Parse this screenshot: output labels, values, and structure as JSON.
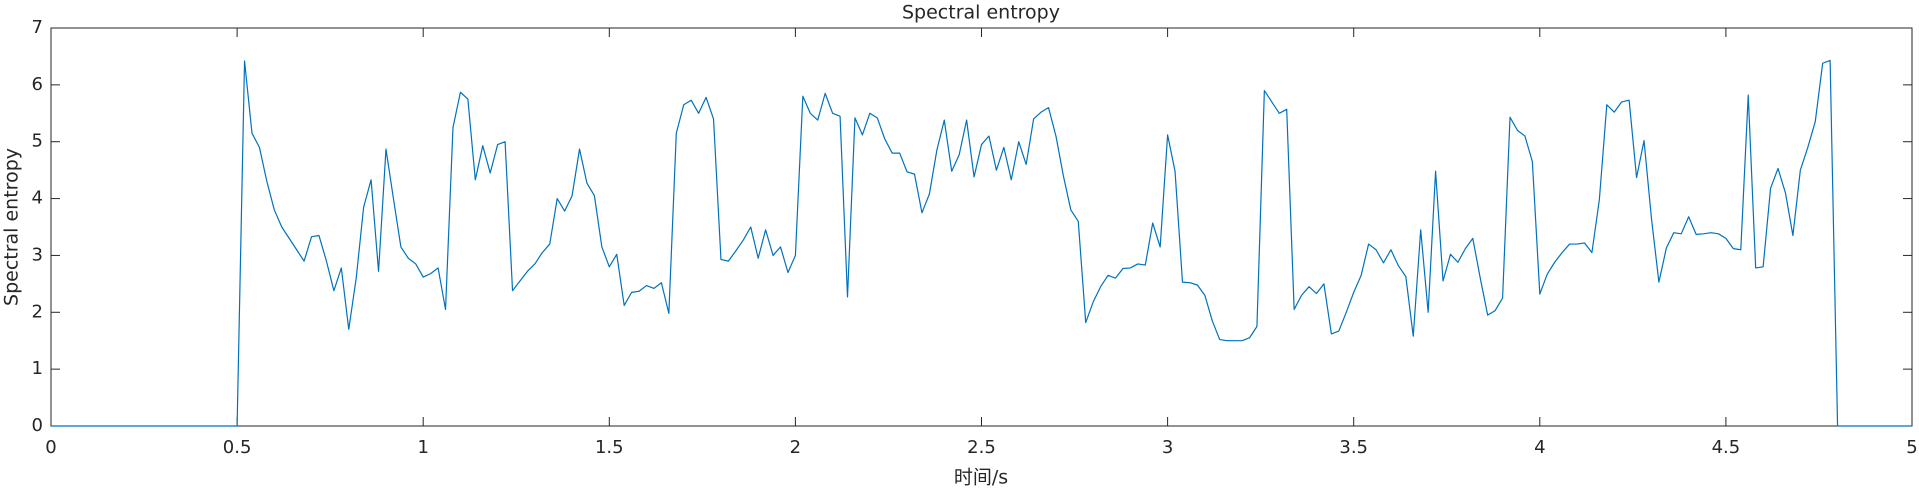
{
  "chart_data": {
    "type": "line",
    "title": "Spectral entropy",
    "xlabel": "时间/s",
    "ylabel": "Spectral entropy",
    "color": "#0072bd",
    "x": [
      0,
      0.5,
      0.52,
      0.54,
      0.56,
      0.58,
      0.6,
      0.62,
      0.64,
      0.66,
      0.68,
      0.7,
      0.72,
      0.74,
      0.76,
      0.78,
      0.8,
      0.82,
      0.84,
      0.86,
      0.88,
      0.9,
      0.92,
      0.94,
      0.96,
      0.98,
      1.0,
      1.02,
      1.04,
      1.06,
      1.08,
      1.1,
      1.12,
      1.14,
      1.16,
      1.18,
      1.2,
      1.22,
      1.24,
      1.26,
      1.28,
      1.3,
      1.32,
      1.34,
      1.36,
      1.38,
      1.4,
      1.42,
      1.44,
      1.46,
      1.48,
      1.5,
      1.52,
      1.54,
      1.56,
      1.58,
      1.6,
      1.62,
      1.64,
      1.66,
      1.68,
      1.7,
      1.72,
      1.74,
      1.76,
      1.78,
      1.8,
      1.82,
      1.84,
      1.86,
      1.88,
      1.9,
      1.92,
      1.94,
      1.96,
      1.98,
      2.0,
      2.02,
      2.04,
      2.06,
      2.08,
      2.1,
      2.12,
      2.14,
      2.16,
      2.18,
      2.2,
      2.22,
      2.24,
      2.26,
      2.28,
      2.3,
      2.32,
      2.34,
      2.36,
      2.38,
      2.4,
      2.42,
      2.44,
      2.46,
      2.48,
      2.5,
      2.52,
      2.54,
      2.56,
      2.58,
      2.6,
      2.62,
      2.64,
      2.66,
      2.68,
      2.7,
      2.72,
      2.74,
      2.76,
      2.78,
      2.8,
      2.82,
      2.84,
      2.86,
      2.88,
      2.9,
      2.92,
      2.94,
      2.96,
      2.98,
      3.0,
      3.02,
      3.04,
      3.06,
      3.08,
      3.1,
      3.12,
      3.14,
      3.16,
      3.18,
      3.2,
      3.22,
      3.24,
      3.26,
      3.28,
      3.3,
      3.32,
      3.34,
      3.36,
      3.38,
      3.4,
      3.42,
      3.44,
      3.46,
      3.48,
      3.5,
      3.52,
      3.54,
      3.56,
      3.58,
      3.6,
      3.62,
      3.64,
      3.66,
      3.68,
      3.7,
      3.72,
      3.74,
      3.76,
      3.78,
      3.8,
      3.82,
      3.84,
      3.86,
      3.88,
      3.9,
      3.92,
      3.94,
      3.96,
      3.98,
      4.0,
      4.02,
      4.04,
      4.06,
      4.08,
      4.1,
      4.12,
      4.14,
      4.16,
      4.18,
      4.2,
      4.22,
      4.24,
      4.26,
      4.28,
      4.3,
      4.32,
      4.34,
      4.36,
      4.38,
      4.4,
      4.42,
      4.44,
      4.46,
      4.48,
      4.5,
      4.52,
      4.54,
      4.56,
      4.58,
      4.6,
      4.62,
      4.64,
      4.66,
      4.68,
      4.7,
      4.72,
      4.74,
      4.76,
      4.78,
      4.8,
      5
    ],
    "values": [
      0,
      0,
      6.42,
      5.15,
      4.9,
      4.3,
      3.8,
      3.5,
      3.3,
      3.1,
      2.9,
      3.33,
      3.35,
      2.9,
      2.38,
      2.78,
      1.7,
      2.6,
      3.85,
      4.33,
      2.72,
      4.87,
      4.0,
      3.15,
      2.95,
      2.85,
      2.62,
      2.68,
      2.78,
      2.05,
      5.25,
      5.87,
      5.75,
      4.33,
      4.93,
      4.45,
      4.95,
      5.0,
      2.38,
      2.55,
      2.72,
      2.85,
      3.05,
      3.2,
      4.0,
      3.78,
      4.05,
      4.87,
      4.27,
      4.05,
      3.15,
      2.8,
      3.02,
      2.12,
      2.35,
      2.37,
      2.47,
      2.42,
      2.52,
      1.98,
      5.15,
      5.65,
      5.73,
      5.5,
      5.78,
      5.4,
      2.93,
      2.9,
      3.08,
      3.27,
      3.5,
      2.95,
      3.45,
      3.0,
      3.15,
      2.7,
      3.0,
      5.8,
      5.5,
      5.38,
      5.85,
      5.5,
      5.45,
      2.27,
      5.42,
      5.12,
      5.5,
      5.42,
      5.05,
      4.8,
      4.8,
      4.47,
      4.43,
      3.75,
      4.08,
      4.85,
      5.38,
      4.48,
      4.77,
      5.38,
      4.38,
      4.95,
      5.1,
      4.5,
      4.9,
      4.33,
      5.0,
      4.6,
      5.4,
      5.52,
      5.6,
      5.1,
      4.4,
      3.8,
      3.6,
      1.82,
      2.18,
      2.45,
      2.65,
      2.6,
      2.77,
      2.78,
      2.85,
      2.83,
      3.57,
      3.15,
      5.12,
      4.48,
      2.53,
      2.52,
      2.48,
      2.3,
      1.85,
      1.52,
      1.5,
      1.5,
      1.5,
      1.55,
      1.75,
      5.9,
      5.7,
      5.5,
      5.57,
      2.05,
      2.3,
      2.45,
      2.33,
      2.5,
      1.62,
      1.67,
      2.0,
      2.35,
      2.65,
      3.2,
      3.1,
      2.87,
      3.1,
      2.82,
      2.63,
      1.58,
      3.45,
      2.0,
      4.48,
      2.55,
      3.02,
      2.88,
      3.12,
      3.3,
      2.6,
      1.95,
      2.03,
      2.25,
      5.43,
      5.2,
      5.1,
      4.65,
      2.32,
      2.67,
      2.88,
      3.05,
      3.2,
      3.2,
      3.22,
      3.05,
      3.98,
      5.65,
      5.52,
      5.7,
      5.73,
      4.37,
      5.02,
      3.65,
      2.53,
      3.13,
      3.4,
      3.38,
      3.68,
      3.37,
      3.38,
      3.4,
      3.38,
      3.3,
      3.12,
      3.1,
      5.82,
      2.78,
      2.8,
      4.18,
      4.53,
      4.1,
      3.35,
      4.5,
      4.9,
      5.35,
      6.38,
      6.43,
      0,
      0
    ],
    "xlim": [
      0,
      5
    ],
    "xticks": [
      0,
      0.5,
      1,
      1.5,
      2,
      2.5,
      3,
      3.5,
      4,
      4.5,
      5
    ],
    "ylim": [
      0,
      7
    ],
    "yticks": [
      0,
      1,
      2,
      3,
      4,
      5,
      6,
      7
    ],
    "grid": false
  }
}
